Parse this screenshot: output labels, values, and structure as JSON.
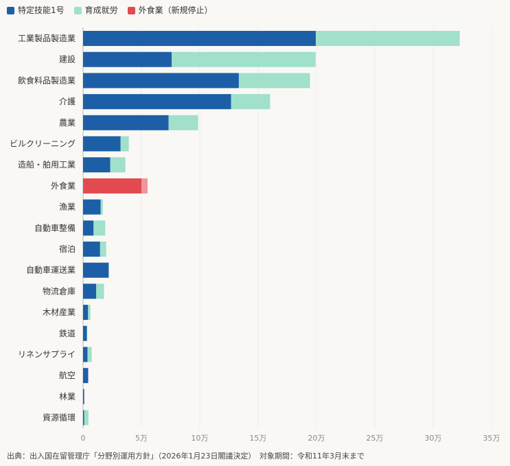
{
  "legend": [
    {
      "name": "特定技能1号",
      "color": "#1d5fa6"
    },
    {
      "name": "育成就労",
      "color": "#a1e0cb"
    },
    {
      "name": "外食業（新規停止）",
      "color": "#e24a4f"
    }
  ],
  "chart_data": {
    "type": "bar",
    "orientation": "horizontal",
    "stacked": true,
    "title": "",
    "xlabel": "",
    "ylabel": "",
    "xlim": [
      0,
      350000
    ],
    "x_ticks": [
      0,
      50000,
      100000,
      150000,
      200000,
      250000,
      300000,
      350000
    ],
    "x_tick_labels": [
      "0",
      "5万",
      "10万",
      "15万",
      "20万",
      "25万",
      "30万",
      "35万"
    ],
    "grid": true,
    "highlight": {
      "category": "外食業",
      "color": "#e24a4f",
      "secondary_color": "#f0959a",
      "label_color": "#c93b40"
    },
    "categories": [
      "工業製品製造業",
      "建設",
      "飲食料品製造業",
      "介護",
      "農業",
      "ビルクリーニング",
      "造船・舶用工業",
      "外食業",
      "漁業",
      "自動車整備",
      "宿泊",
      "自動車運送業",
      "物流倉庫",
      "木材産業",
      "鉄道",
      "リネンサプライ",
      "航空",
      "林業",
      "資源循環"
    ],
    "series": [
      {
        "name": "特定技能1号",
        "color": "#1d5fa6",
        "values": [
          199500,
          76000,
          133500,
          126900,
          73300,
          32200,
          23300,
          50000,
          15000,
          9000,
          14600,
          22000,
          11300,
          4300,
          3300,
          3800,
          4400,
          1000,
          1000
        ]
      },
      {
        "name": "育成就労",
        "color": "#a1e0cb",
        "values": [
          123300,
          123300,
          61000,
          33400,
          25300,
          7000,
          13000,
          5300,
          2000,
          10000,
          5200,
          0,
          6700,
          2000,
          300,
          3600,
          0,
          0,
          3600
        ]
      }
    ]
  },
  "source_note": "出典：出入国在留管理庁「分野別運用方針」（2026年1月23日閣議決定）　対象期間：令和11年3月末まで"
}
